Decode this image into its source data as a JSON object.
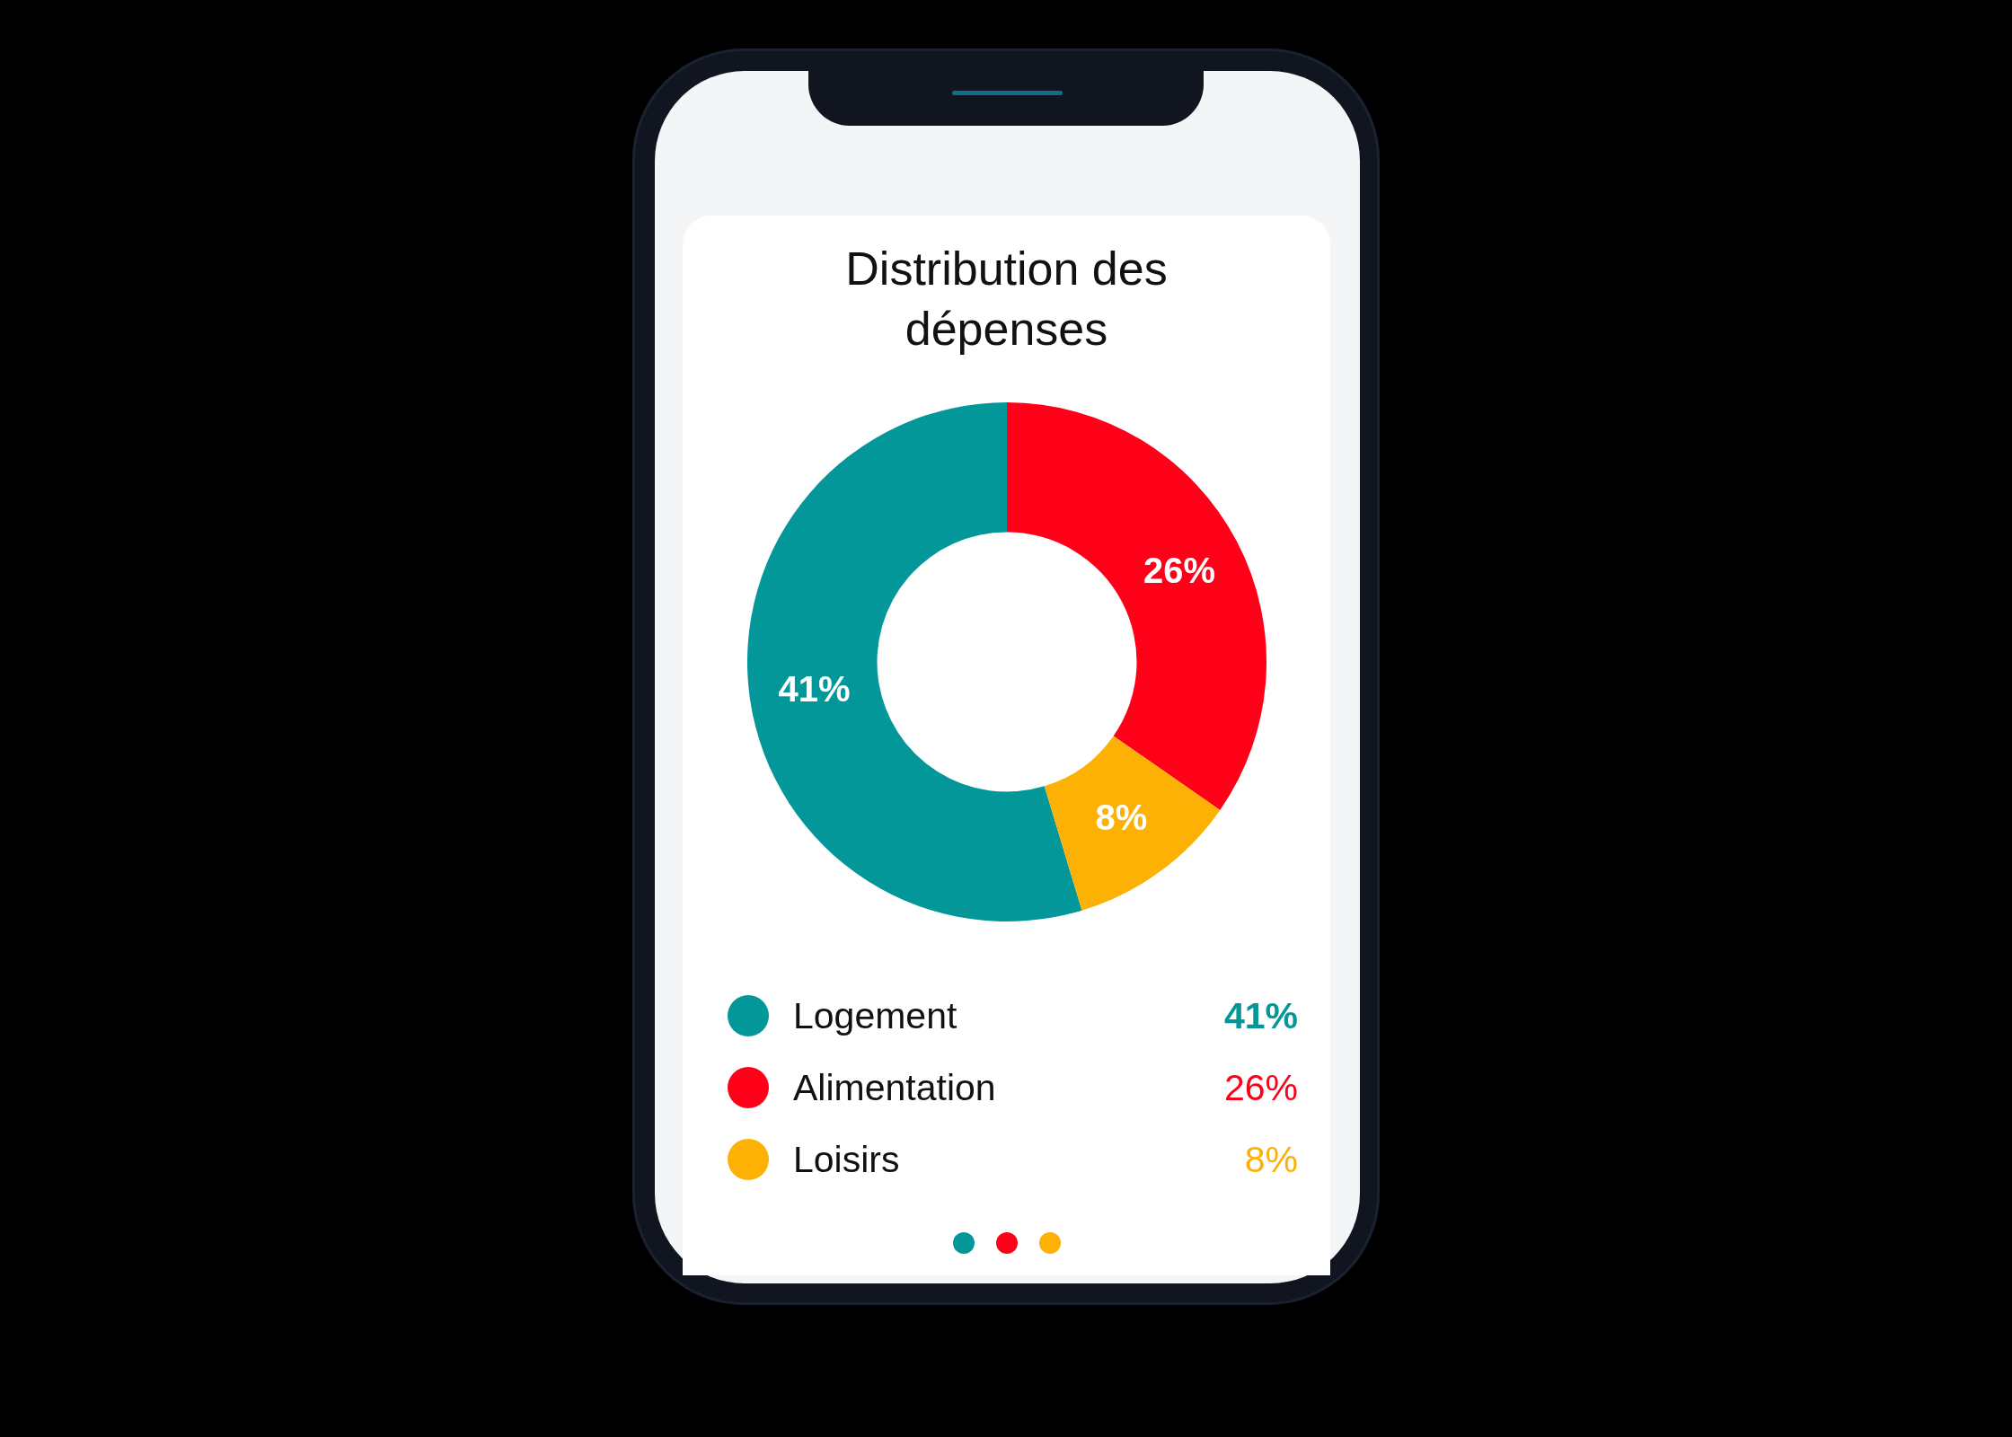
{
  "chart_data": {
    "type": "donut",
    "title": "Distribution des dépenses",
    "categories": [
      "Logement",
      "Alimentation",
      "Loisirs"
    ],
    "values": [
      41,
      26,
      8
    ],
    "colors": [
      "#03979a",
      "#fe0018",
      "#fdb104"
    ],
    "value_labels": [
      "41%",
      "26%",
      "8%"
    ],
    "legend": "bottom"
  }
}
